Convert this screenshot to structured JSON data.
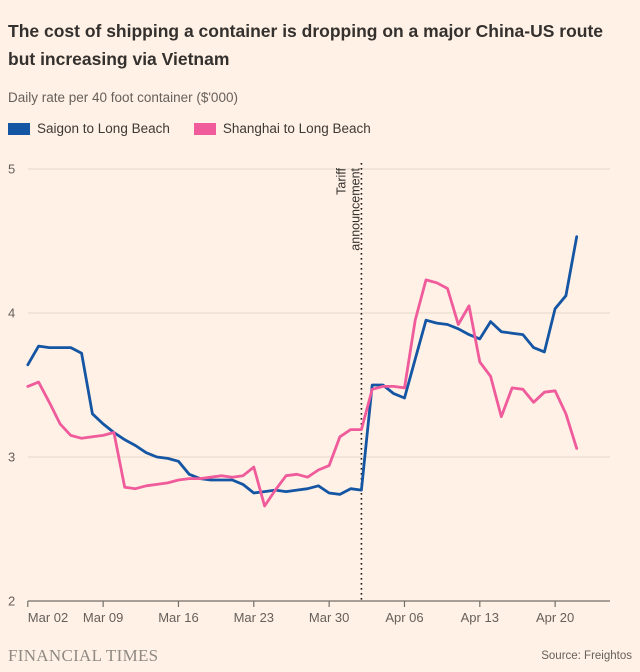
{
  "header": {
    "title": "The cost of shipping a container is dropping on a major China-US route but increasing via Vietnam",
    "subtitle": "Daily rate per 40 foot container ($'000)"
  },
  "legend": [
    {
      "label": "Saigon to Long Beach",
      "color": "#1455A4"
    },
    {
      "label": "Shanghai to Long Beach",
      "color": "#EF5B9B"
    }
  ],
  "chart_data": {
    "type": "line",
    "title": "The cost of shipping a container is dropping on a major China-US route but increasing via Vietnam",
    "ylabel": "Daily rate per 40 foot container ($'000)",
    "ylim": [
      2,
      5
    ],
    "y_ticks": [
      "5",
      "4",
      "3",
      "2"
    ],
    "y_tick_values": [
      5,
      4,
      3,
      2
    ],
    "grid": "horizontal-only",
    "x_start_label": "Mar 02",
    "x_end_label": "Apr 22",
    "x_tick_labels": [
      "Mar 02",
      "Mar 09",
      "Mar 16",
      "Mar 23",
      "Mar 30",
      "Apr 06",
      "Apr 13",
      "Apr 20"
    ],
    "x_tick_days": [
      0,
      7,
      14,
      21,
      28,
      35,
      42,
      49
    ],
    "annotation": {
      "line1": "Tariff",
      "line2": "announcement",
      "x_day": 31,
      "style": "vertical-dotted-line"
    },
    "series": [
      {
        "name": "Saigon to Long Beach",
        "color": "#1455A4",
        "values": [
          3.64,
          3.77,
          3.76,
          3.76,
          3.76,
          3.72,
          3.3,
          3.23,
          3.17,
          3.12,
          3.08,
          3.03,
          3.0,
          2.99,
          2.97,
          2.88,
          2.85,
          2.84,
          2.84,
          2.84,
          2.81,
          2.75,
          2.76,
          2.77,
          2.76,
          2.77,
          2.78,
          2.8,
          2.75,
          2.74,
          2.78,
          2.77,
          3.5,
          3.5,
          3.44,
          3.41,
          3.68,
          3.95,
          3.93,
          3.92,
          3.89,
          3.85,
          3.82,
          3.94,
          3.87,
          3.86,
          3.85,
          3.76,
          3.73,
          4.03,
          4.12,
          4.53
        ]
      },
      {
        "name": "Shanghai to Long Beach",
        "color": "#EF5B9B",
        "values": [
          3.49,
          3.52,
          3.38,
          3.23,
          3.15,
          3.13,
          3.14,
          3.15,
          3.17,
          2.79,
          2.78,
          2.8,
          2.81,
          2.82,
          2.84,
          2.85,
          2.85,
          2.86,
          2.87,
          2.86,
          2.87,
          2.93,
          2.66,
          2.77,
          2.87,
          2.88,
          2.86,
          2.91,
          2.94,
          3.14,
          3.19,
          3.19,
          3.47,
          3.49,
          3.49,
          3.48,
          3.95,
          4.23,
          4.21,
          4.17,
          3.92,
          4.05,
          3.66,
          3.56,
          3.28,
          3.48,
          3.47,
          3.38,
          3.45,
          3.46,
          3.3,
          3.06
        ]
      }
    ],
    "colors": {
      "background": "#FFF1E5",
      "gridline": "#E4D6C8",
      "axis": "#73706A",
      "tick_label": "#66605C",
      "annotation_line": "#1A1817"
    }
  },
  "footer": {
    "brand": "FINANCIAL TIMES",
    "source": "Source: Freightos"
  }
}
